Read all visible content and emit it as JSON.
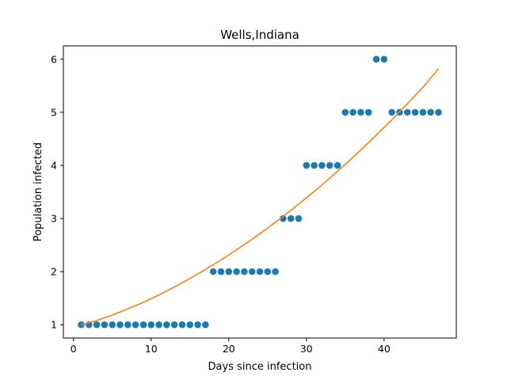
{
  "chart_data": {
    "type": "scatter",
    "title": "Wells,Indiana",
    "xlabel": "Days since infection",
    "ylabel": "Population infected",
    "xlim": [
      -1.3,
      49.3
    ],
    "ylim": [
      0.75,
      6.25
    ],
    "xticks": [
      0,
      10,
      20,
      30,
      40
    ],
    "yticks": [
      1,
      2,
      3,
      4,
      5,
      6
    ],
    "grid": false,
    "legend": false,
    "series": [
      {
        "type": "scatter",
        "color": "#1f77b4",
        "x": [
          1,
          2,
          3,
          4,
          5,
          6,
          7,
          8,
          9,
          10,
          11,
          12,
          13,
          14,
          15,
          16,
          17,
          18,
          19,
          20,
          21,
          22,
          23,
          24,
          25,
          26,
          27,
          28,
          29,
          30,
          31,
          32,
          33,
          34,
          35,
          36,
          37,
          38,
          39,
          40,
          41,
          42,
          43,
          44,
          45,
          46,
          47
        ],
        "y": [
          1,
          1,
          1,
          1,
          1,
          1,
          1,
          1,
          1,
          1,
          1,
          1,
          1,
          1,
          1,
          1,
          1,
          2,
          2,
          2,
          2,
          2,
          2,
          2,
          2,
          2,
          3,
          3,
          3,
          4,
          4,
          4,
          4,
          4,
          5,
          5,
          5,
          5,
          6,
          6,
          5,
          5,
          5,
          5,
          5,
          5,
          5
        ]
      },
      {
        "type": "line",
        "color": "#ff7f0e",
        "x": [
          1,
          3,
          5,
          7,
          9,
          11,
          13,
          15,
          17,
          19,
          21,
          23,
          25,
          27,
          29,
          31,
          33,
          35,
          37,
          39,
          41,
          43,
          45,
          47
        ],
        "y": [
          1.0,
          1.08,
          1.18,
          1.3,
          1.42,
          1.56,
          1.71,
          1.87,
          2.04,
          2.22,
          2.41,
          2.61,
          2.82,
          3.04,
          3.27,
          3.51,
          3.76,
          4.02,
          4.29,
          4.57,
          4.86,
          5.16,
          5.47,
          5.82
        ]
      }
    ]
  }
}
